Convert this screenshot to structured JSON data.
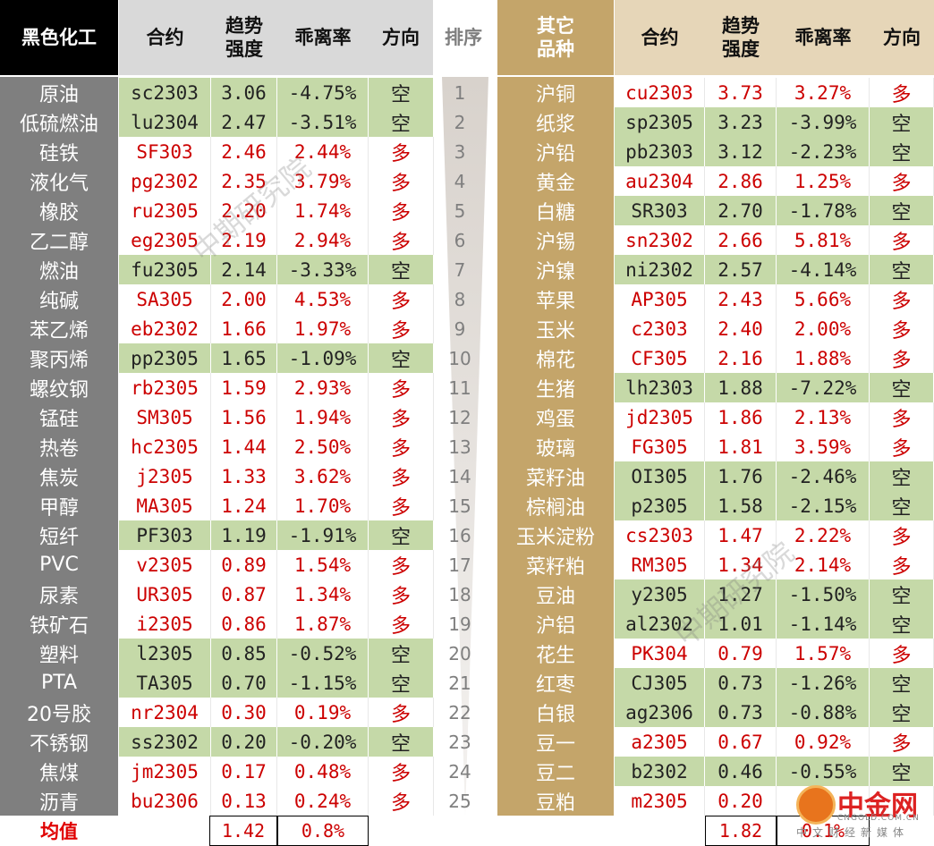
{
  "header": {
    "left_category": "黑色化工",
    "contract": "合约",
    "trend_strength": [
      "趋势",
      "强度"
    ],
    "deviation": "乖离率",
    "direction": "方向",
    "rank": "排序",
    "right_category": [
      "其它",
      "品种"
    ]
  },
  "left_rows": [
    {
      "name": "原油",
      "contract": "sc2303",
      "trend": "3.06",
      "deviation": "-4.75%",
      "direction": "空"
    },
    {
      "name": "低硫燃油",
      "contract": "lu2304",
      "trend": "2.47",
      "deviation": "-3.51%",
      "direction": "空"
    },
    {
      "name": "硅铁",
      "contract": "SF303",
      "trend": "2.46",
      "deviation": "2.44%",
      "direction": "多"
    },
    {
      "name": "液化气",
      "contract": "pg2302",
      "trend": "2.35",
      "deviation": "3.79%",
      "direction": "多"
    },
    {
      "name": "橡胶",
      "contract": "ru2305",
      "trend": "2.20",
      "deviation": "1.74%",
      "direction": "多"
    },
    {
      "name": "乙二醇",
      "contract": "eg2305",
      "trend": "2.19",
      "deviation": "2.94%",
      "direction": "多"
    },
    {
      "name": "燃油",
      "contract": "fu2305",
      "trend": "2.14",
      "deviation": "-3.33%",
      "direction": "空"
    },
    {
      "name": "纯碱",
      "contract": "SA305",
      "trend": "2.00",
      "deviation": "4.53%",
      "direction": "多"
    },
    {
      "name": "苯乙烯",
      "contract": "eb2302",
      "trend": "1.66",
      "deviation": "1.97%",
      "direction": "多"
    },
    {
      "name": "聚丙烯",
      "contract": "pp2305",
      "trend": "1.65",
      "deviation": "-1.09%",
      "direction": "空"
    },
    {
      "name": "螺纹钢",
      "contract": "rb2305",
      "trend": "1.59",
      "deviation": "2.93%",
      "direction": "多"
    },
    {
      "name": "锰硅",
      "contract": "SM305",
      "trend": "1.56",
      "deviation": "1.94%",
      "direction": "多"
    },
    {
      "name": "热卷",
      "contract": "hc2305",
      "trend": "1.44",
      "deviation": "2.50%",
      "direction": "多"
    },
    {
      "name": "焦炭",
      "contract": "j2305",
      "trend": "1.33",
      "deviation": "3.62%",
      "direction": "多"
    },
    {
      "name": "甲醇",
      "contract": "MA305",
      "trend": "1.24",
      "deviation": "1.70%",
      "direction": "多"
    },
    {
      "name": "短纤",
      "contract": "PF303",
      "trend": "1.19",
      "deviation": "-1.91%",
      "direction": "空"
    },
    {
      "name": "PVC",
      "contract": "v2305",
      "trend": "0.89",
      "deviation": "1.54%",
      "direction": "多"
    },
    {
      "name": "尿素",
      "contract": "UR305",
      "trend": "0.87",
      "deviation": "1.34%",
      "direction": "多"
    },
    {
      "name": "铁矿石",
      "contract": "i2305",
      "trend": "0.86",
      "deviation": "1.87%",
      "direction": "多"
    },
    {
      "name": "塑料",
      "contract": "l2305",
      "trend": "0.85",
      "deviation": "-0.52%",
      "direction": "空"
    },
    {
      "name": "PTA",
      "contract": "TA305",
      "trend": "0.70",
      "deviation": "-1.15%",
      "direction": "空"
    },
    {
      "name": "20号胶",
      "contract": "nr2304",
      "trend": "0.30",
      "deviation": "0.19%",
      "direction": "多"
    },
    {
      "name": "不锈钢",
      "contract": "ss2302",
      "trend": "0.20",
      "deviation": "-0.20%",
      "direction": "空"
    },
    {
      "name": "焦煤",
      "contract": "jm2305",
      "trend": "0.17",
      "deviation": "0.48%",
      "direction": "多"
    },
    {
      "name": "沥青",
      "contract": "bu2306",
      "trend": "0.13",
      "deviation": "0.24%",
      "direction": "多"
    }
  ],
  "ranks": [
    "1",
    "2",
    "3",
    "4",
    "5",
    "6",
    "7",
    "8",
    "9",
    "10",
    "11",
    "12",
    "13",
    "14",
    "15",
    "16",
    "17",
    "18",
    "19",
    "20",
    "21",
    "22",
    "23",
    "24",
    "25"
  ],
  "right_rows": [
    {
      "name": "沪铜",
      "contract": "cu2303",
      "trend": "3.73",
      "deviation": "3.27%",
      "direction": "多"
    },
    {
      "name": "纸浆",
      "contract": "sp2305",
      "trend": "3.23",
      "deviation": "-3.99%",
      "direction": "空"
    },
    {
      "name": "沪铅",
      "contract": "pb2303",
      "trend": "3.12",
      "deviation": "-2.23%",
      "direction": "空"
    },
    {
      "name": "黄金",
      "contract": "au2304",
      "trend": "2.86",
      "deviation": "1.25%",
      "direction": "多"
    },
    {
      "name": "白糖",
      "contract": "SR303",
      "trend": "2.70",
      "deviation": "-1.78%",
      "direction": "空"
    },
    {
      "name": "沪锡",
      "contract": "sn2302",
      "trend": "2.66",
      "deviation": "5.81%",
      "direction": "多"
    },
    {
      "name": "沪镍",
      "contract": "ni2302",
      "trend": "2.57",
      "deviation": "-4.14%",
      "direction": "空"
    },
    {
      "name": "苹果",
      "contract": "AP305",
      "trend": "2.43",
      "deviation": "5.66%",
      "direction": "多"
    },
    {
      "name": "玉米",
      "contract": "c2303",
      "trend": "2.40",
      "deviation": "2.00%",
      "direction": "多"
    },
    {
      "name": "棉花",
      "contract": "CF305",
      "trend": "2.16",
      "deviation": "1.88%",
      "direction": "多"
    },
    {
      "name": "生猪",
      "contract": "lh2303",
      "trend": "1.88",
      "deviation": "-7.22%",
      "direction": "空"
    },
    {
      "name": "鸡蛋",
      "contract": "jd2305",
      "trend": "1.86",
      "deviation": "2.13%",
      "direction": "多"
    },
    {
      "name": "玻璃",
      "contract": "FG305",
      "trend": "1.81",
      "deviation": "3.59%",
      "direction": "多"
    },
    {
      "name": "菜籽油",
      "contract": "OI305",
      "trend": "1.76",
      "deviation": "-2.46%",
      "direction": "空"
    },
    {
      "name": "棕榈油",
      "contract": "p2305",
      "trend": "1.58",
      "deviation": "-2.15%",
      "direction": "空"
    },
    {
      "name": "玉米淀粉",
      "contract": "cs2303",
      "trend": "1.47",
      "deviation": "2.22%",
      "direction": "多"
    },
    {
      "name": "菜籽粕",
      "contract": "RM305",
      "trend": "1.34",
      "deviation": "2.14%",
      "direction": "多"
    },
    {
      "name": "豆油",
      "contract": "y2305",
      "trend": "1.27",
      "deviation": "-1.50%",
      "direction": "空"
    },
    {
      "name": "沪铝",
      "contract": "al2302",
      "trend": "1.01",
      "deviation": "-1.14%",
      "direction": "空"
    },
    {
      "name": "花生",
      "contract": "PK304",
      "trend": "0.79",
      "deviation": "1.57%",
      "direction": "多"
    },
    {
      "name": "红枣",
      "contract": "CJ305",
      "trend": "0.73",
      "deviation": "-1.26%",
      "direction": "空"
    },
    {
      "name": "白银",
      "contract": "ag2306",
      "trend": "0.73",
      "deviation": "-0.88%",
      "direction": "空"
    },
    {
      "name": "豆一",
      "contract": "a2305",
      "trend": "0.67",
      "deviation": "0.92%",
      "direction": "多"
    },
    {
      "name": "豆二",
      "contract": "b2302",
      "trend": "0.46",
      "deviation": "-0.55%",
      "direction": "空"
    },
    {
      "name": "豆粕",
      "contract": "m2305",
      "trend": "0.20",
      "deviation": "",
      "direction": ""
    }
  ],
  "footer": {
    "label": "均值",
    "left_trend_avg": "1.42",
    "left_dev_avg": "0.8%",
    "right_trend_avg": "1.82",
    "right_dev_avg": "0.1%"
  },
  "watermark": "中期研究院",
  "logo": {
    "name": "中金网",
    "url": "CNGOLD.COM.CN",
    "sub": "中文财经新媒体"
  },
  "colors": {
    "long_fill": "#ffffff",
    "short_fill": "#c5d9a8",
    "left_cat": "#7f7f7f",
    "right_cat": "#c4a56a",
    "up_text": "#cc0000"
  }
}
